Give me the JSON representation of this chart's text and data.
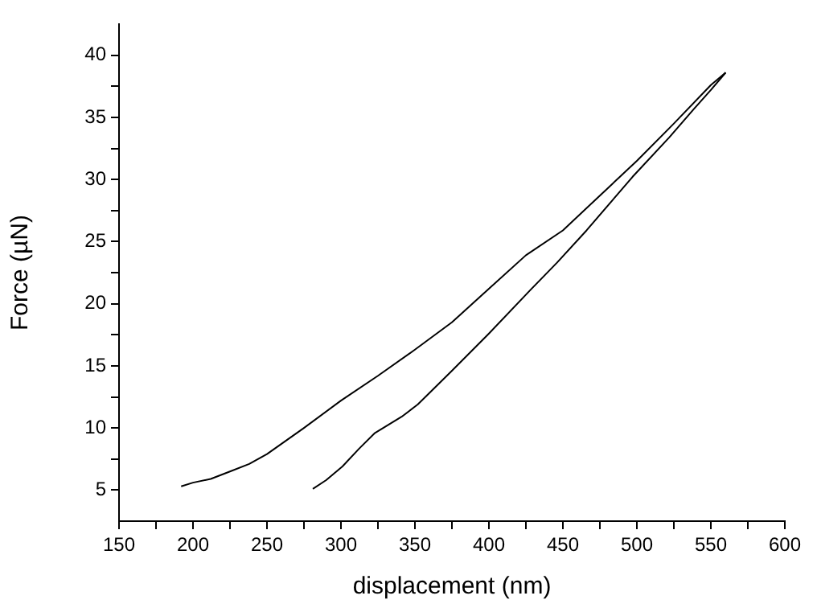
{
  "chart_data": {
    "type": "line",
    "xlabel": "displacement (nm)",
    "ylabel": "Force (µN)",
    "xlim": [
      150,
      600
    ],
    "ylim": [
      2.5,
      42.5
    ],
    "xticks": [
      150,
      {
        "value": 175,
        "label": null
      },
      200,
      {
        "value": 225,
        "label": null
      },
      250,
      {
        "value": 275,
        "label": null
      },
      300,
      {
        "value": 325,
        "label": null
      },
      350,
      {
        "value": 375,
        "label": null
      },
      400,
      {
        "value": 425,
        "label": null
      },
      450,
      {
        "value": 475,
        "label": null
      },
      500,
      {
        "value": 525,
        "label": null
      },
      550,
      {
        "value": 575,
        "label": null
      },
      600
    ],
    "yticks": [
      5,
      {
        "value": 7.5,
        "label": null
      },
      10,
      {
        "value": 12.5,
        "label": null
      },
      15,
      {
        "value": 17.5,
        "label": null
      },
      20,
      {
        "value": 22.5,
        "label": null
      },
      25,
      {
        "value": 27.5,
        "label": null
      },
      30,
      {
        "value": 32.5,
        "label": null
      },
      35,
      {
        "value": 37.5,
        "label": null
      },
      40
    ],
    "grid": false,
    "legend": false,
    "marker": "none",
    "line_style": "solid",
    "series": [
      {
        "color": "#000000",
        "x": [
          192,
          200,
          212,
          225,
          238,
          250,
          275,
          300,
          325,
          350,
          375,
          400,
          425,
          450,
          475,
          500,
          525,
          550,
          560
        ],
        "values": [
          5.3,
          5.6,
          5.9,
          6.5,
          7.1,
          7.9,
          10.0,
          12.2,
          14.2,
          16.3,
          18.5,
          21.2,
          23.9,
          25.9,
          28.7,
          31.5,
          34.5,
          37.6,
          38.6
        ]
      },
      {
        "color": "#000000",
        "x": [
          281,
          290,
          301,
          312,
          323,
          341,
          352,
          375,
          400,
          428,
          446,
          466,
          497,
          522,
          538,
          550,
          560
        ],
        "values": [
          5.1,
          5.8,
          6.9,
          8.3,
          9.6,
          10.9,
          11.9,
          14.6,
          17.6,
          21.1,
          23.3,
          25.9,
          30.2,
          33.4,
          35.6,
          37.2,
          38.6
        ]
      }
    ]
  }
}
